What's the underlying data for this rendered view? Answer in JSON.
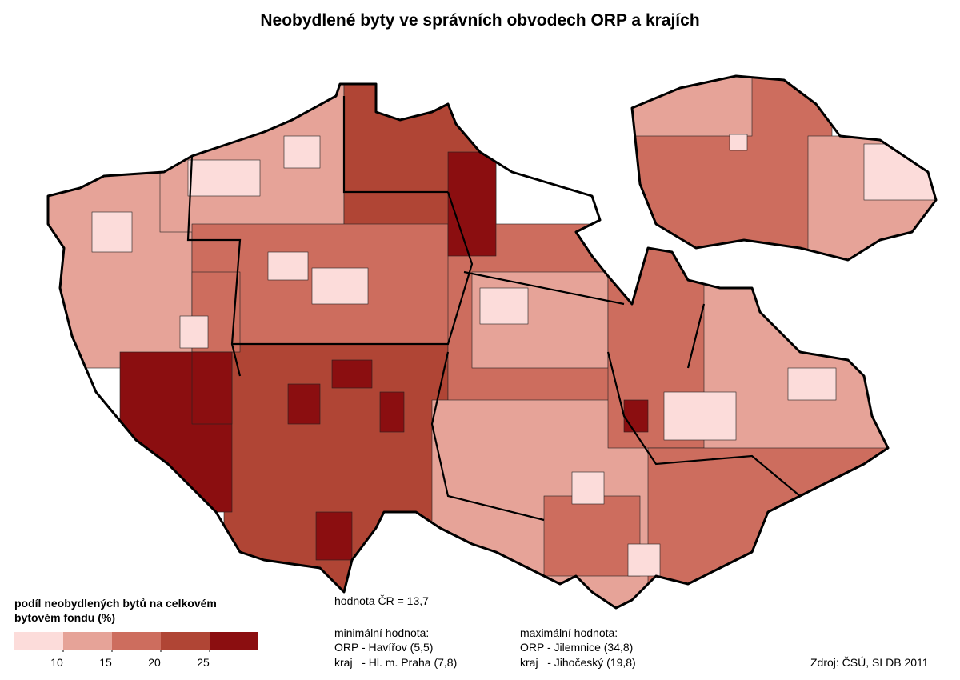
{
  "title": "Neobydlené byty ve správních obvodech ORP a krajích",
  "legend": {
    "title": "podíl neobydlených bytů na celkovém bytovém fondu (%)",
    "colors": [
      "#fcdcda",
      "#e6a398",
      "#cd6d5e",
      "#b04535",
      "#8b0e10"
    ],
    "ticks": [
      10,
      15,
      20,
      25
    ]
  },
  "notes": {
    "national": "hodnota ČR = 13,7",
    "min_title": "minimální hodnota:",
    "min_orp": "ORP - Havířov (5,5)",
    "min_kraj": "kraj   - Hl. m. Praha (7,8)",
    "max_title": "maximální hodnota:",
    "max_orp": "ORP - Jilemnice (34,8)",
    "max_kraj": "kraj   - Jihočeský (19,8)"
  },
  "source": "Zdroj: ČSÚ, SLDB 2011"
}
